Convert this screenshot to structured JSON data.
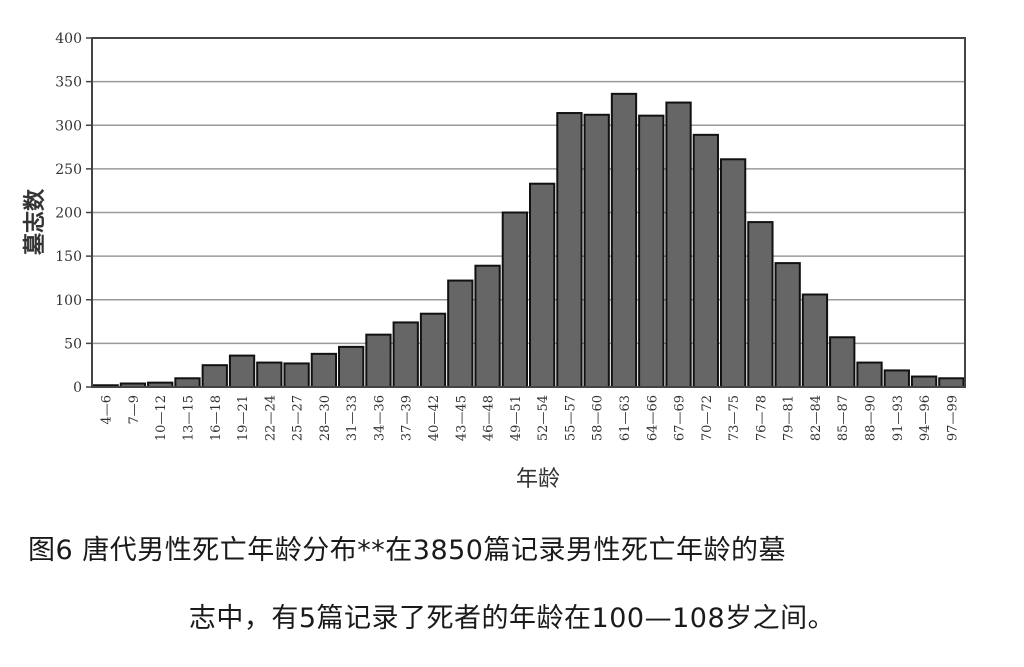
{
  "chart_data": {
    "type": "bar",
    "title": "",
    "xlabel": "年龄",
    "ylabel": "墓志数",
    "ylim": [
      0,
      400
    ],
    "yticks": [
      0,
      50,
      100,
      150,
      200,
      250,
      300,
      350,
      400
    ],
    "grid": "horizontal",
    "legend": "none",
    "bar_color": "#666666",
    "bar_edge_color": "#111111",
    "categories": [
      "4—6",
      "7—9",
      "10—12",
      "13—15",
      "16—18",
      "19—21",
      "22—24",
      "25—27",
      "28—30",
      "31—33",
      "34—36",
      "37—39",
      "40—42",
      "43—45",
      "46—48",
      "49—51",
      "52—54",
      "55—57",
      "58—60",
      "61—63",
      "64—66",
      "67—69",
      "70—72",
      "73—75",
      "76—78",
      "79—81",
      "82—84",
      "85—87",
      "88—90",
      "91—93",
      "94—96",
      "97—99"
    ],
    "values": [
      2,
      4,
      5,
      10,
      25,
      36,
      28,
      27,
      38,
      46,
      60,
      74,
      84,
      122,
      139,
      200,
      233,
      314,
      312,
      336,
      311,
      326,
      289,
      261,
      189,
      142,
      106,
      57,
      28,
      19,
      12,
      10
    ]
  },
  "caption": {
    "line1": "图6 唐代男性死亡年龄分布**在3850篇记录男性死亡年龄的墓",
    "line2": "志中，有5篇记录了死者的年龄在100—108岁之间。"
  }
}
